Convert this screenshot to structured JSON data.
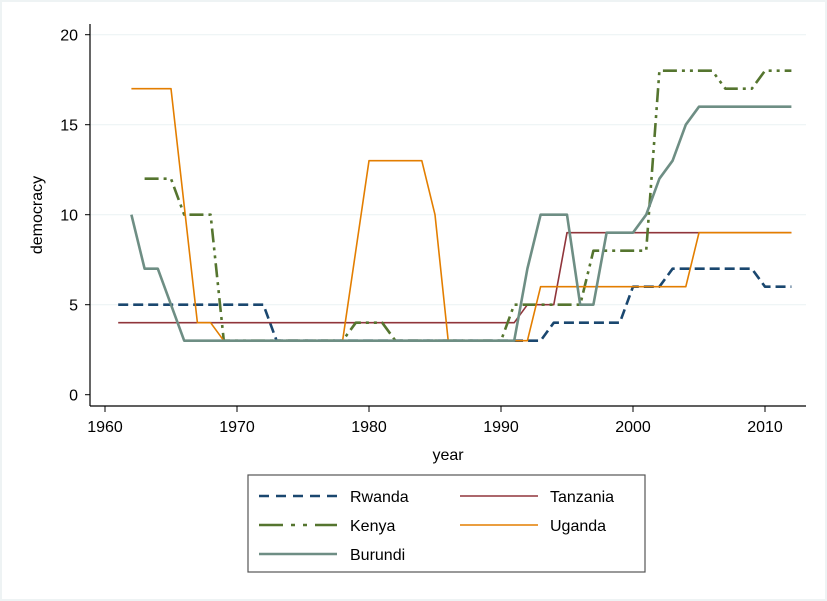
{
  "chart_data": {
    "type": "line",
    "title": "",
    "xlabel": "year",
    "ylabel": "democracy",
    "xlim": [
      1958.8,
      2013
    ],
    "ylim": [
      0,
      20
    ],
    "xticks": [
      1960,
      1970,
      1980,
      1990,
      2000,
      2010
    ],
    "xtick_labels": [
      "1960",
      "1970",
      "1980",
      "1990",
      "2000",
      "2010"
    ],
    "yticks": [
      0,
      5,
      10,
      15,
      20
    ],
    "ytick_labels": [
      "0",
      "5",
      "10",
      "15",
      "20"
    ],
    "grid": "horizontal",
    "legend_position": "bottom",
    "series": [
      {
        "name": "Rwanda",
        "color": "#1a476f",
        "style": "dash",
        "x": [
          1961,
          1962,
          1963,
          1964,
          1965,
          1966,
          1967,
          1968,
          1969,
          1970,
          1971,
          1972,
          1973,
          1974,
          1975,
          1976,
          1977,
          1978,
          1979,
          1980,
          1981,
          1982,
          1983,
          1984,
          1985,
          1986,
          1987,
          1988,
          1989,
          1990,
          1991,
          1992,
          1993,
          1994,
          1995,
          1996,
          1997,
          1998,
          1999,
          2000,
          2001,
          2002,
          2003,
          2004,
          2005,
          2006,
          2007,
          2008,
          2009,
          2010,
          2011,
          2012
        ],
        "values": [
          5,
          5,
          5,
          5,
          5,
          5,
          5,
          5,
          5,
          5,
          5,
          5,
          3,
          3,
          3,
          3,
          3,
          3,
          3,
          3,
          3,
          3,
          3,
          3,
          3,
          3,
          3,
          3,
          3,
          3,
          3,
          3,
          3,
          4,
          4,
          4,
          4,
          4,
          4,
          6,
          6,
          6,
          7,
          7,
          7,
          7,
          7,
          7,
          7,
          6,
          6,
          6
        ]
      },
      {
        "name": "Tanzania",
        "color": "#90353b",
        "style": "solid",
        "x": [
          1961,
          1962,
          1963,
          1964,
          1965,
          1966,
          1967,
          1968,
          1969,
          1970,
          1971,
          1972,
          1973,
          1974,
          1975,
          1976,
          1977,
          1978,
          1979,
          1980,
          1981,
          1982,
          1983,
          1984,
          1985,
          1986,
          1987,
          1988,
          1989,
          1990,
          1991,
          1992,
          1993,
          1994,
          1995,
          1996,
          1997,
          1998,
          1999,
          2000,
          2001,
          2002,
          2003,
          2004,
          2005,
          2006,
          2007,
          2008,
          2009,
          2010,
          2011,
          2012
        ],
        "values": [
          4,
          4,
          4,
          4,
          4,
          4,
          4,
          4,
          4,
          4,
          4,
          4,
          4,
          4,
          4,
          4,
          4,
          4,
          4,
          4,
          4,
          4,
          4,
          4,
          4,
          4,
          4,
          4,
          4,
          4,
          4,
          5,
          5,
          5,
          9,
          9,
          9,
          9,
          9,
          9,
          9,
          9,
          9,
          9,
          9,
          9,
          9,
          9,
          9,
          9,
          9,
          9
        ]
      },
      {
        "name": "Kenya",
        "color": "#55752f",
        "style": "dashdot",
        "x": [
          1963,
          1964,
          1965,
          1966,
          1967,
          1968,
          1969,
          1970,
          1971,
          1972,
          1973,
          1974,
          1975,
          1976,
          1977,
          1978,
          1979,
          1980,
          1981,
          1982,
          1983,
          1984,
          1985,
          1986,
          1987,
          1988,
          1989,
          1990,
          1991,
          1992,
          1993,
          1994,
          1995,
          1996,
          1997,
          1998,
          1999,
          2000,
          2001,
          2002,
          2003,
          2004,
          2005,
          2006,
          2007,
          2008,
          2009,
          2010,
          2011,
          2012
        ],
        "values": [
          12,
          12,
          12,
          10,
          10,
          10,
          3,
          3,
          3,
          3,
          3,
          3,
          3,
          3,
          3,
          3,
          4,
          4,
          4,
          3,
          3,
          3,
          3,
          3,
          3,
          3,
          3,
          3,
          5,
          5,
          5,
          5,
          5,
          5,
          8,
          8,
          8,
          8,
          8,
          18,
          18,
          18,
          18,
          18,
          17,
          17,
          17,
          18,
          18,
          18
        ]
      },
      {
        "name": "Uganda",
        "color": "#e37e00",
        "style": "solid",
        "x": [
          1962,
          1963,
          1964,
          1965,
          1967,
          1968,
          1969,
          1970,
          1971,
          1972,
          1973,
          1974,
          1975,
          1976,
          1977,
          1978,
          1980,
          1981,
          1982,
          1983,
          1984,
          1985,
          1986,
          1987,
          1988,
          1989,
          1990,
          1991,
          1992,
          1993,
          1994,
          1995,
          1996,
          1997,
          1998,
          1999,
          2000,
          2001,
          2002,
          2003,
          2004,
          2005,
          2006,
          2007,
          2008,
          2009,
          2010,
          2011,
          2012
        ],
        "values": [
          17,
          17,
          17,
          17,
          4,
          4,
          3,
          3,
          3,
          3,
          3,
          3,
          3,
          3,
          3,
          3,
          13,
          13,
          13,
          13,
          13,
          10,
          3,
          3,
          3,
          3,
          3,
          3,
          3,
          6,
          6,
          6,
          6,
          6,
          6,
          6,
          6,
          6,
          6,
          6,
          6,
          9,
          9,
          9,
          9,
          9,
          9,
          9,
          9
        ]
      },
      {
        "name": "Burundi",
        "color": "#6e8e84",
        "style": "solid",
        "x": [
          1962,
          1963,
          1964,
          1965,
          1966,
          1967,
          1968,
          1969,
          1970,
          1971,
          1972,
          1973,
          1974,
          1975,
          1976,
          1977,
          1978,
          1979,
          1980,
          1981,
          1982,
          1983,
          1984,
          1985,
          1986,
          1987,
          1988,
          1989,
          1990,
          1991,
          1992,
          1993,
          1994,
          1995,
          1996,
          1997,
          1998,
          1999,
          2000,
          2001,
          2002,
          2003,
          2004,
          2005,
          2006,
          2007,
          2008,
          2009,
          2010,
          2011,
          2012
        ],
        "values": [
          10,
          7,
          7,
          5,
          3,
          3,
          3,
          3,
          3,
          3,
          3,
          3,
          3,
          3,
          3,
          3,
          3,
          3,
          3,
          3,
          3,
          3,
          3,
          3,
          3,
          3,
          3,
          3,
          3,
          3,
          7,
          10,
          10,
          10,
          5,
          5,
          9,
          9,
          9,
          10,
          12,
          13,
          15,
          16,
          16,
          16,
          16,
          16,
          16,
          16,
          16
        ]
      }
    ]
  }
}
